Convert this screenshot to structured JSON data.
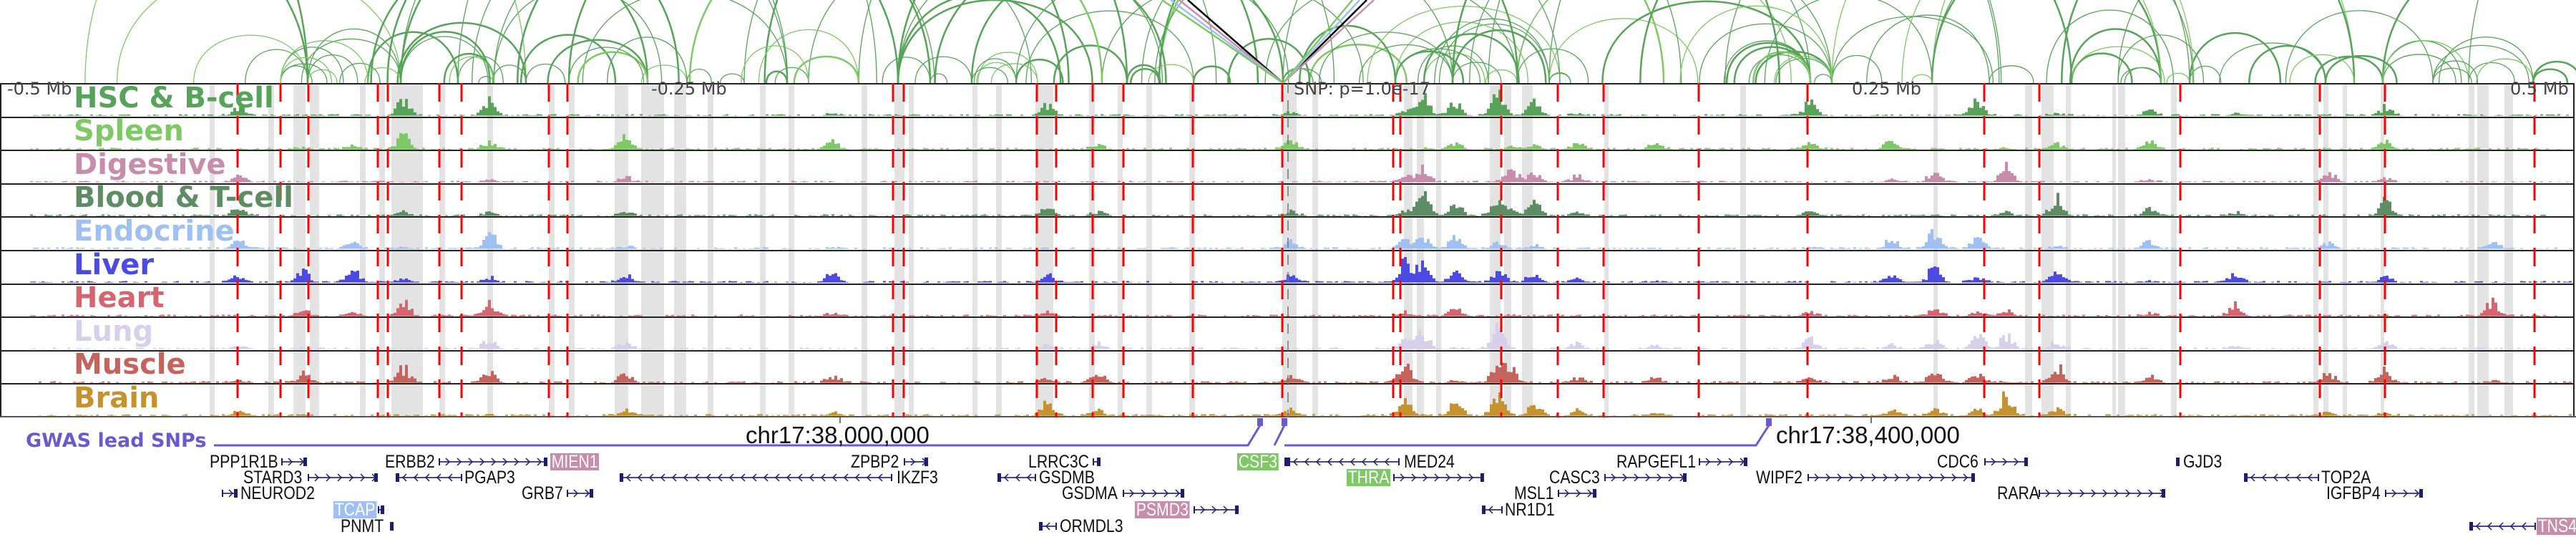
{
  "axis": {
    "left": "-0.5 Mb",
    "left_mid": "-0.25 Mb",
    "snp": "SNP: p=1.0e-17",
    "right_mid": "0.25 Mb",
    "right": "0.5 Mb"
  },
  "tracks": [
    {
      "name": "HSC & B-cell",
      "color": "#57a35a"
    },
    {
      "name": "Spleen",
      "color": "#7ec865"
    },
    {
      "name": "Digestive",
      "color": "#c78dab"
    },
    {
      "name": "Blood & T-cell",
      "color": "#5e8c63"
    },
    {
      "name": "Endocrine",
      "color": "#9ec0f2"
    },
    {
      "name": "Liver",
      "color": "#4b4ae3"
    },
    {
      "name": "Heart",
      "color": "#d5666f"
    },
    {
      "name": "Lung",
      "color": "#d8d0ea"
    },
    {
      "name": "Muscle",
      "color": "#c4645c"
    },
    {
      "name": "Brain",
      "color": "#c6922e"
    }
  ],
  "gwas": {
    "label": "GWAS lead SNPs",
    "color": "#6a5acd"
  },
  "coordinates": [
    "chr17:38,000,000",
    "chr17:38,400,000"
  ],
  "genes": [
    {
      "name": "PPP1R1B"
    },
    {
      "name": "ERBB2"
    },
    {
      "name": "MIEN1",
      "highlight": "#c78dab"
    },
    {
      "name": "STARD3"
    },
    {
      "name": "PGAP3"
    },
    {
      "name": "NEUROD2"
    },
    {
      "name": "GRB7"
    },
    {
      "name": "TCAP",
      "highlight": "#9ec0f2"
    },
    {
      "name": "PNMT"
    },
    {
      "name": "IKZF3"
    },
    {
      "name": "ZPBP2"
    },
    {
      "name": "LRRC3C"
    },
    {
      "name": "GSDMB"
    },
    {
      "name": "GSDMA"
    },
    {
      "name": "PSMD3",
      "highlight": "#c78dab"
    },
    {
      "name": "ORMDL3"
    },
    {
      "name": "CSF3",
      "highlight": "#7ec865"
    },
    {
      "name": "MED24"
    },
    {
      "name": "THRA",
      "highlight": "#7ec865"
    },
    {
      "name": "CASC3"
    },
    {
      "name": "RAPGEFL1"
    },
    {
      "name": "MSL1"
    },
    {
      "name": "NR1D1"
    },
    {
      "name": "WIPF2"
    },
    {
      "name": "CDC6"
    },
    {
      "name": "GJD3"
    },
    {
      "name": "RARA"
    },
    {
      "name": "TOP2A"
    },
    {
      "name": "IGFBP4"
    },
    {
      "name": "TNS4",
      "highlight": "#c78dab"
    }
  ],
  "colors": {
    "snp_line": "#ff0000",
    "gene": "#1e1e6e",
    "highlight_band": "#e3e3e3"
  }
}
